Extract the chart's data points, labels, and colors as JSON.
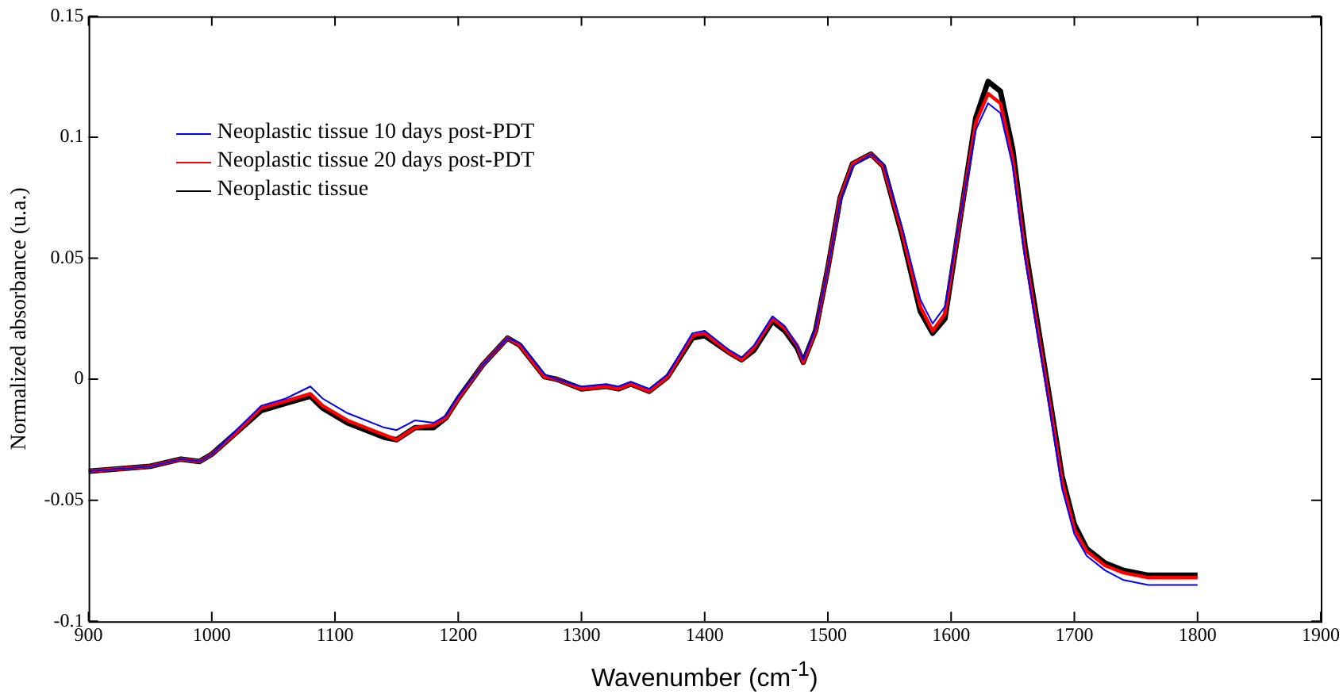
{
  "chart_data": {
    "type": "line",
    "xlabel": "Wavenumber (cm$^{-1}$)",
    "ylabel": "Normalized absorbance (u.a.)",
    "x": [
      900,
      950,
      975,
      990,
      1000,
      1020,
      1040,
      1060,
      1080,
      1090,
      1110,
      1140,
      1150,
      1165,
      1180,
      1190,
      1200,
      1220,
      1240,
      1250,
      1270,
      1280,
      1300,
      1320,
      1330,
      1340,
      1355,
      1370,
      1390,
      1400,
      1420,
      1430,
      1440,
      1455,
      1465,
      1475,
      1480,
      1490,
      1500,
      1510,
      1520,
      1535,
      1545,
      1560,
      1575,
      1585,
      1595,
      1610,
      1620,
      1630,
      1640,
      1650,
      1660,
      1680,
      1690,
      1700,
      1710,
      1725,
      1740,
      1760,
      1780,
      1800
    ],
    "series": [
      {
        "name": "Neoplastic tissue 10 days post-PDT",
        "color": "#0000ff",
        "values": [
          -0.038,
          -0.036,
          -0.033,
          -0.034,
          -0.031,
          -0.021,
          -0.011,
          -0.008,
          -0.003,
          -0.008,
          -0.014,
          -0.02,
          -0.021,
          -0.017,
          -0.018,
          -0.015,
          -0.007,
          0.006,
          0.017,
          0.015,
          0.002,
          0.0,
          -0.003,
          -0.002,
          -0.003,
          -0.001,
          -0.004,
          0.002,
          0.019,
          0.02,
          0.012,
          0.009,
          0.014,
          0.026,
          0.022,
          0.014,
          0.008,
          0.021,
          0.046,
          0.074,
          0.088,
          0.093,
          0.089,
          0.063,
          0.033,
          0.023,
          0.03,
          0.075,
          0.103,
          0.114,
          0.11,
          0.088,
          0.05,
          -0.012,
          -0.045,
          -0.064,
          -0.073,
          -0.079,
          -0.083,
          -0.085,
          -0.085,
          -0.085
        ]
      },
      {
        "name": "Neoplastic tissue 20 days post-PDT",
        "color": "#ff0000",
        "values": [
          -0.038,
          -0.036,
          -0.033,
          -0.034,
          -0.031,
          -0.022,
          -0.012,
          -0.009,
          -0.006,
          -0.011,
          -0.017,
          -0.023,
          -0.025,
          -0.02,
          -0.019,
          -0.016,
          -0.008,
          0.006,
          0.017,
          0.014,
          0.001,
          0.0,
          -0.004,
          -0.003,
          -0.004,
          -0.002,
          -0.005,
          0.001,
          0.018,
          0.019,
          0.011,
          0.008,
          0.013,
          0.025,
          0.021,
          0.014,
          0.007,
          0.02,
          0.046,
          0.075,
          0.089,
          0.093,
          0.088,
          0.061,
          0.03,
          0.02,
          0.027,
          0.075,
          0.106,
          0.118,
          0.114,
          0.091,
          0.052,
          -0.01,
          -0.042,
          -0.062,
          -0.071,
          -0.077,
          -0.08,
          -0.082,
          -0.082,
          -0.082
        ]
      },
      {
        "name": "Neoplastic tissue",
        "color": "#000000",
        "values": [
          -0.038,
          -0.036,
          -0.033,
          -0.034,
          -0.031,
          -0.022,
          -0.013,
          -0.01,
          -0.007,
          -0.012,
          -0.018,
          -0.024,
          -0.025,
          -0.02,
          -0.02,
          -0.016,
          -0.008,
          0.006,
          0.017,
          0.014,
          0.001,
          0.0,
          -0.004,
          -0.003,
          -0.004,
          -0.002,
          -0.005,
          0.001,
          0.017,
          0.018,
          0.011,
          0.008,
          0.012,
          0.024,
          0.02,
          0.013,
          0.007,
          0.02,
          0.046,
          0.075,
          0.089,
          0.093,
          0.088,
          0.06,
          0.028,
          0.019,
          0.025,
          0.075,
          0.108,
          0.123,
          0.119,
          0.095,
          0.055,
          -0.008,
          -0.04,
          -0.06,
          -0.07,
          -0.076,
          -0.079,
          -0.081,
          -0.081,
          -0.081
        ]
      }
    ],
    "xlim": [
      900,
      1900
    ],
    "xticks": [
      900,
      1000,
      1100,
      1200,
      1300,
      1400,
      1500,
      1600,
      1700,
      1800,
      1900
    ],
    "ylim": [
      -0.1,
      0.15
    ],
    "yticks": [
      -0.1,
      -0.05,
      0,
      0.05,
      0.1,
      0.15
    ],
    "grid": false,
    "legend": "top left",
    "marker": "none",
    "line_style": "solid"
  }
}
